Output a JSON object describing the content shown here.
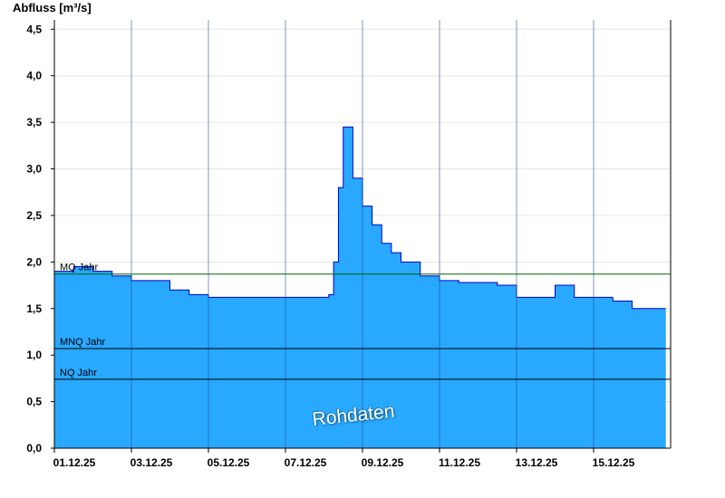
{
  "chart_data": {
    "type": "area",
    "ylabel": "Abfluss [m³/s]",
    "ylim": [
      0,
      4.6
    ],
    "yticks": [
      "0,0",
      "0,5",
      "1,0",
      "1,5",
      "2,0",
      "2,5",
      "3,0",
      "3,5",
      "4,0",
      "4,5"
    ],
    "xlim": [
      "2025-12-01T00:00",
      "2025-12-17T00:00"
    ],
    "xticks": [
      "01.12.25",
      "03.12.25",
      "05.12.25",
      "07.12.25",
      "09.12.25",
      "11.12.25",
      "13.12.25",
      "15.12.25"
    ],
    "grid": true,
    "series": [
      {
        "x": [
          "2025-12-01T00:00",
          "2025-12-01T12:00",
          "2025-12-02T00:00",
          "2025-12-02T12:00",
          "2025-12-03T00:00",
          "2025-12-03T12:00",
          "2025-12-04T00:00",
          "2025-12-04T12:00",
          "2025-12-05T00:00",
          "2025-12-05T12:00",
          "2025-12-06T00:00",
          "2025-12-06T12:00",
          "2025-12-07T00:00",
          "2025-12-07T06:00",
          "2025-12-07T12:00",
          "2025-12-07T18:00",
          "2025-12-08T00:00",
          "2025-12-08T03:00",
          "2025-12-08T06:00",
          "2025-12-08T09:00",
          "2025-12-08T12:00",
          "2025-12-08T18:00",
          "2025-12-09T00:00",
          "2025-12-09T06:00",
          "2025-12-09T12:00",
          "2025-12-09T18:00",
          "2025-12-10T00:00",
          "2025-12-10T12:00",
          "2025-12-11T00:00",
          "2025-12-11T12:00",
          "2025-12-12T00:00",
          "2025-12-12T12:00",
          "2025-12-13T00:00",
          "2025-12-13T12:00",
          "2025-12-14T00:00",
          "2025-12-14T12:00",
          "2025-12-15T00:00",
          "2025-12-15T12:00",
          "2025-12-16T00:00",
          "2025-12-16T12:00",
          "2025-12-16T21:00"
        ],
        "y": [
          1.9,
          1.95,
          1.9,
          1.85,
          1.8,
          1.8,
          1.7,
          1.65,
          1.62,
          1.62,
          1.62,
          1.62,
          1.62,
          1.62,
          1.62,
          1.62,
          1.62,
          1.65,
          2.0,
          2.8,
          3.45,
          2.9,
          2.6,
          2.4,
          2.2,
          2.1,
          2.0,
          1.85,
          1.8,
          1.78,
          1.78,
          1.75,
          1.62,
          1.62,
          1.75,
          1.62,
          1.62,
          1.58,
          1.5,
          1.5,
          1.5
        ]
      }
    ],
    "reference_lines": [
      {
        "label": "MQ Jahr",
        "value": 1.87,
        "color": "#006400"
      },
      {
        "label": "MNQ Jahr",
        "value": 1.07,
        "color": "#000000"
      },
      {
        "label": "NQ Jahr",
        "value": 0.74,
        "color": "#000000"
      }
    ],
    "colors": {
      "fill": "#29a8ff",
      "line": "#0000cc"
    },
    "annotation": "Rohdaten"
  }
}
